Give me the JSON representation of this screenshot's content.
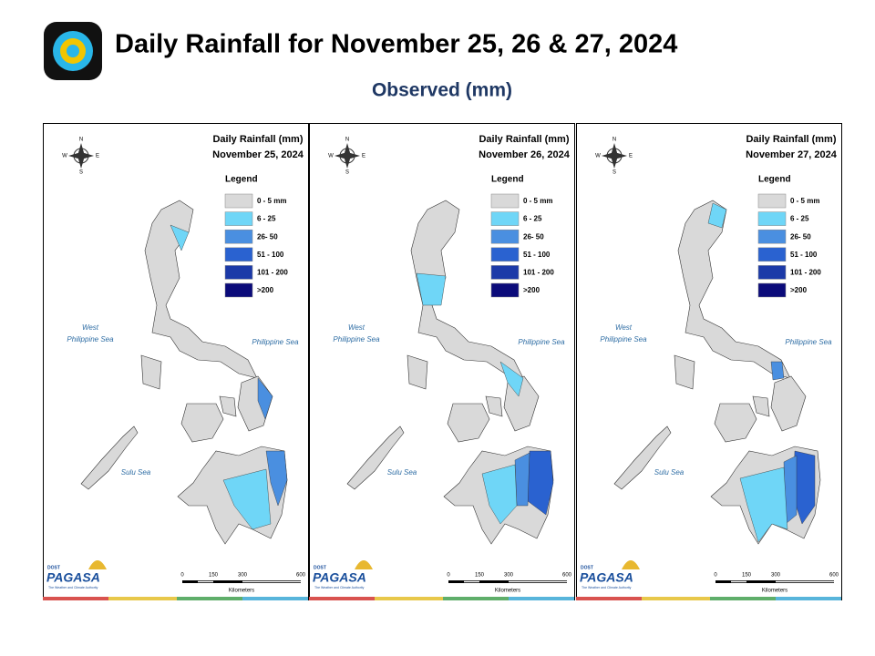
{
  "header": {
    "title": "Daily Rainfall for November 25, 26 & 27, 2024",
    "subtitle": "Observed (mm)"
  },
  "legend": {
    "title": "Legend",
    "items": [
      {
        "label": "0 - 5 mm",
        "color": "#d9d9d9"
      },
      {
        "label": "6 - 25",
        "color": "#6fd6f7"
      },
      {
        "label": "26- 50",
        "color": "#4a8fe0"
      },
      {
        "label": "51 - 100",
        "color": "#2a62d0"
      },
      {
        "label": "101 - 200",
        "color": "#1c3aa8"
      },
      {
        "label": ">200",
        "color": "#0b0b7a"
      }
    ]
  },
  "panels": [
    {
      "heading": "Daily Rainfall (mm)",
      "date": "November 25, 2024"
    },
    {
      "heading": "Daily Rainfall (mm)",
      "date": "November 26, 2024"
    },
    {
      "heading": "Daily Rainfall (mm)",
      "date": "November 27, 2024"
    }
  ],
  "seas": {
    "west": [
      "West",
      "Philippine Sea"
    ],
    "east": "Philippine Sea",
    "sulu": "Sulu Sea"
  },
  "compass": {
    "n": "N",
    "e": "E",
    "s": "S",
    "w": "W"
  },
  "scale": {
    "ticks": [
      "0",
      "150",
      "300",
      "600"
    ],
    "unit": "Kilometers"
  },
  "logo": {
    "top": "DOST",
    "name": "PAGASA",
    "tagline": "The Weather and Climate Authority"
  }
}
